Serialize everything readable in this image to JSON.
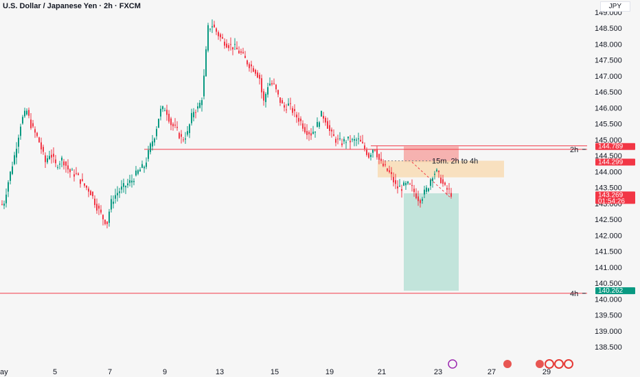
{
  "header": {
    "title": "U.S. Dollar / Japanese Yen · 2h · FXCM",
    "currency": "JPY"
  },
  "colors": {
    "up": "#089981",
    "down": "#f23645",
    "level_line": "#f23645",
    "target_zone": "#b9e0d6",
    "stop_zone": "#f6a6a3",
    "entry_zone": "#fad7a8",
    "price_tag_red": "#f23645",
    "price_tag_green": "#089981"
  },
  "annotations": {
    "note_text": "15m. 2h to 4h",
    "level_2h_label": "2h",
    "level_4h_label": "4h"
  },
  "price_tags": {
    "stop": "144.789",
    "entry": "144.299",
    "last": "143.269",
    "countdown": "01:54:26",
    "target": "140.262"
  },
  "chart_data": {
    "type": "candlestick",
    "title": "U.S. Dollar / Japanese Yen · 2h · FXCM",
    "y_axis": {
      "range": [
        138.25,
        149.2
      ],
      "ticks": [
        "149.000",
        "148.500",
        "148.000",
        "147.500",
        "147.000",
        "146.500",
        "146.000",
        "145.500",
        "145.000",
        "144.500",
        "144.000",
        "143.500",
        "143.000",
        "142.500",
        "142.000",
        "141.500",
        "141.000",
        "140.500",
        "140.000",
        "139.500",
        "139.000",
        "138.500"
      ]
    },
    "x_axis": {
      "ticks": [
        "ay",
        "5",
        "7",
        "9",
        "13",
        "15",
        "19",
        "21",
        "23",
        "27",
        "29"
      ]
    },
    "key_levels": [
      {
        "label": "2h",
        "value": 144.699
      },
      {
        "label": "4h",
        "value": 140.18
      }
    ],
    "position": {
      "entry": 144.299,
      "stop": 144.789,
      "target": 140.262,
      "last": 143.269
    },
    "price_path": [
      [
        0,
        142.98
      ],
      [
        4,
        142.95
      ],
      [
        10,
        143.6
      ],
      [
        20,
        144.5
      ],
      [
        30,
        145.6
      ],
      [
        38,
        145.9
      ],
      [
        45,
        145.4
      ],
      [
        55,
        145.0
      ],
      [
        65,
        144.3
      ],
      [
        72,
        144.6
      ],
      [
        80,
        144.2
      ],
      [
        90,
        144.4
      ],
      [
        100,
        144.0
      ],
      [
        110,
        143.9
      ],
      [
        120,
        143.6
      ],
      [
        130,
        143.4
      ],
      [
        140,
        142.9
      ],
      [
        150,
        142.5
      ],
      [
        155,
        142.4
      ],
      [
        160,
        143.0
      ],
      [
        168,
        143.3
      ],
      [
        178,
        143.5
      ],
      [
        190,
        143.7
      ],
      [
        200,
        144.0
      ],
      [
        210,
        144.2
      ],
      [
        218,
        144.8
      ],
      [
        225,
        145.2
      ],
      [
        232,
        145.9
      ],
      [
        240,
        146.0
      ],
      [
        248,
        145.5
      ],
      [
        256,
        145.3
      ],
      [
        264,
        145.0
      ],
      [
        272,
        145.2
      ],
      [
        280,
        145.9
      ],
      [
        288,
        146.0
      ],
      [
        294,
        146.4
      ],
      [
        298,
        147.5
      ],
      [
        302,
        148.5
      ],
      [
        308,
        148.6
      ],
      [
        314,
        148.4
      ],
      [
        320,
        148.2
      ],
      [
        330,
        148.0
      ],
      [
        340,
        147.9
      ],
      [
        350,
        147.7
      ],
      [
        360,
        147.4
      ],
      [
        370,
        147.2
      ],
      [
        378,
        146.9
      ],
      [
        382,
        146.1
      ],
      [
        390,
        146.8
      ],
      [
        398,
        146.7
      ],
      [
        405,
        146.3
      ],
      [
        412,
        146.0
      ],
      [
        420,
        146.1
      ],
      [
        428,
        145.8
      ],
      [
        436,
        145.6
      ],
      [
        444,
        145.3
      ],
      [
        452,
        145.2
      ],
      [
        460,
        145.4
      ],
      [
        466,
        145.8
      ],
      [
        472,
        145.7
      ],
      [
        480,
        145.2
      ],
      [
        488,
        145.0
      ],
      [
        496,
        144.9
      ],
      [
        504,
        145.0
      ],
      [
        512,
        144.95
      ],
      [
        520,
        145.0
      ],
      [
        528,
        144.8
      ],
      [
        536,
        144.5
      ],
      [
        544,
        144.8
      ],
      [
        552,
        144.3
      ],
      [
        560,
        144.1
      ],
      [
        568,
        143.9
      ],
      [
        576,
        143.5
      ],
      [
        584,
        143.5
      ],
      [
        592,
        143.6
      ],
      [
        598,
        143.5
      ],
      [
        604,
        143.3
      ],
      [
        610,
        143.1
      ],
      [
        616,
        143.3
      ],
      [
        622,
        143.5
      ],
      [
        628,
        143.9
      ],
      [
        634,
        144.0
      ],
      [
        640,
        143.8
      ],
      [
        646,
        143.5
      ],
      [
        652,
        143.4
      ],
      [
        658,
        143.27
      ]
    ]
  }
}
